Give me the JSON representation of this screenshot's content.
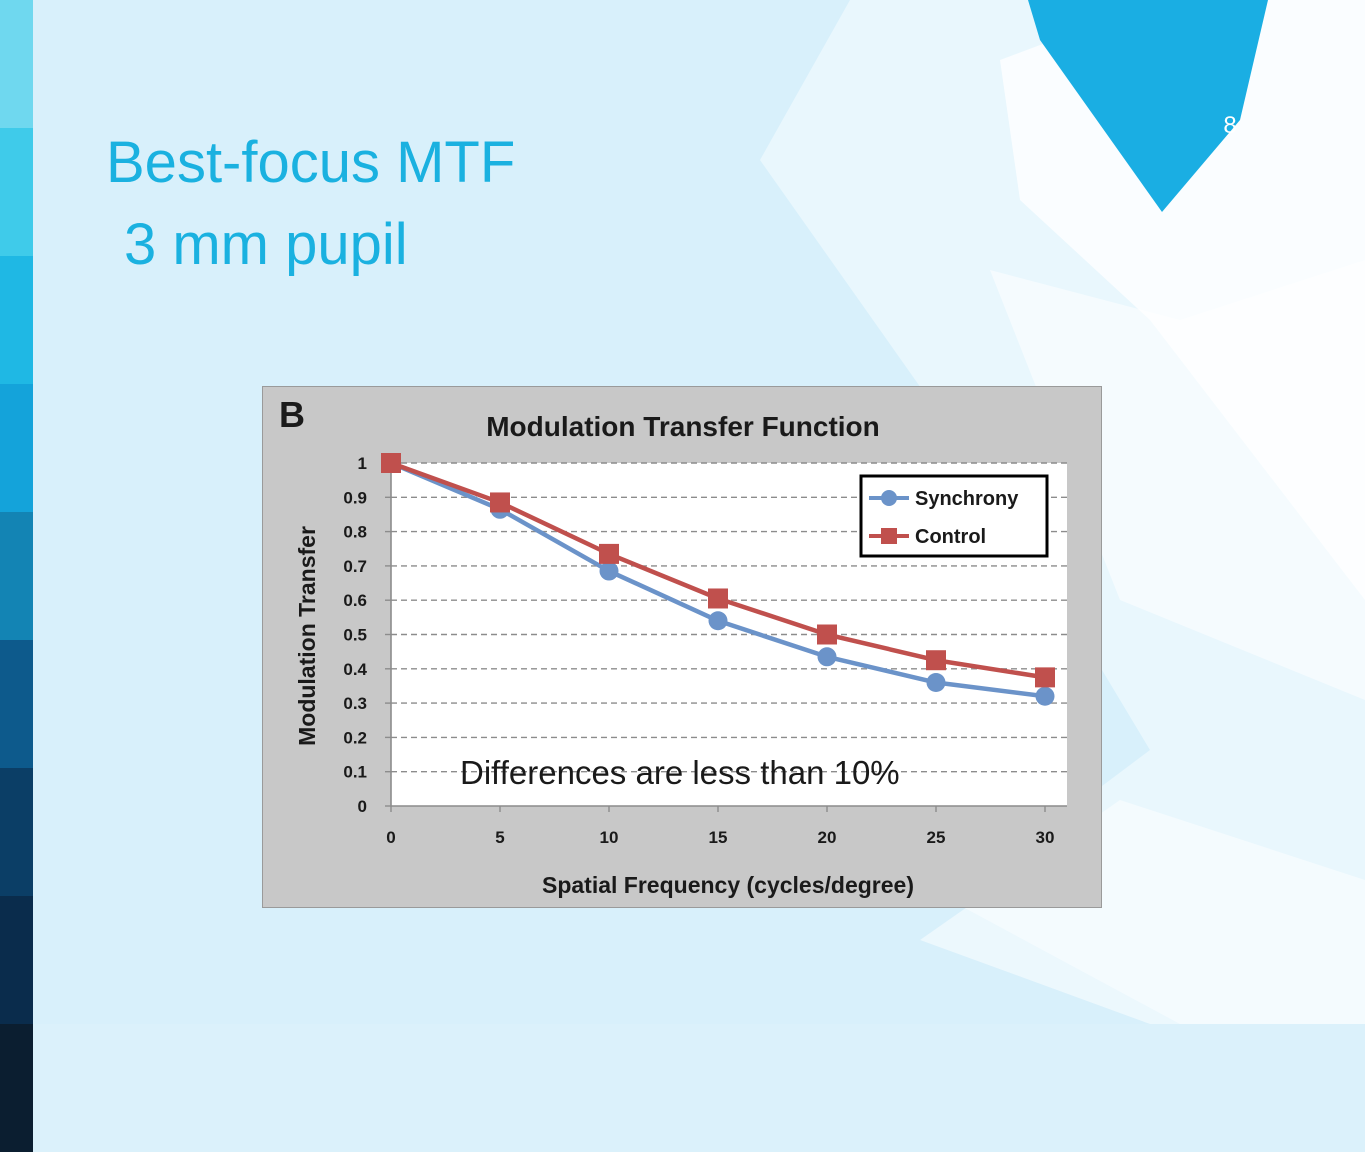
{
  "slide": {
    "number": "8",
    "title_line_1": "Best-focus MTF",
    "title_line_2": "3 mm pupil",
    "accent_color": "#1ab1e0",
    "stripe_colors": [
      "#6fd8ef",
      "#3fcbea",
      "#1fb8e4",
      "#14a3da",
      "#1384b4",
      "#0d5a8c",
      "#0b3e66",
      "#0a2c4c",
      "#0b1e30"
    ]
  },
  "chart_data": {
    "type": "line",
    "panel_label": "B",
    "title": "Modulation Transfer Function",
    "xlabel": "Spatial Frequency (cycles/degree)",
    "ylabel": "Modulation Transfer",
    "x": [
      0,
      5,
      10,
      15,
      20,
      25,
      30
    ],
    "xlim": [
      0,
      30
    ],
    "ylim": [
      0,
      1
    ],
    "x_ticks": [
      "0",
      "5",
      "10",
      "15",
      "20",
      "25",
      "30"
    ],
    "y_ticks": [
      "0",
      "0.1",
      "0.2",
      "0.3",
      "0.4",
      "0.5",
      "0.6",
      "0.7",
      "0.8",
      "0.9",
      "1"
    ],
    "grid": "horizontal-dashed",
    "legend_position": "top-right",
    "series": [
      {
        "name": "Synchrony",
        "marker": "circle",
        "color": "#6b93c9",
        "values": [
          1.0,
          0.865,
          0.685,
          0.54,
          0.435,
          0.36,
          0.32
        ]
      },
      {
        "name": "Control",
        "marker": "square",
        "color": "#c0504d",
        "values": [
          1.0,
          0.885,
          0.735,
          0.605,
          0.5,
          0.425,
          0.375
        ]
      }
    ],
    "annotation": "Differences are less than 10%"
  }
}
